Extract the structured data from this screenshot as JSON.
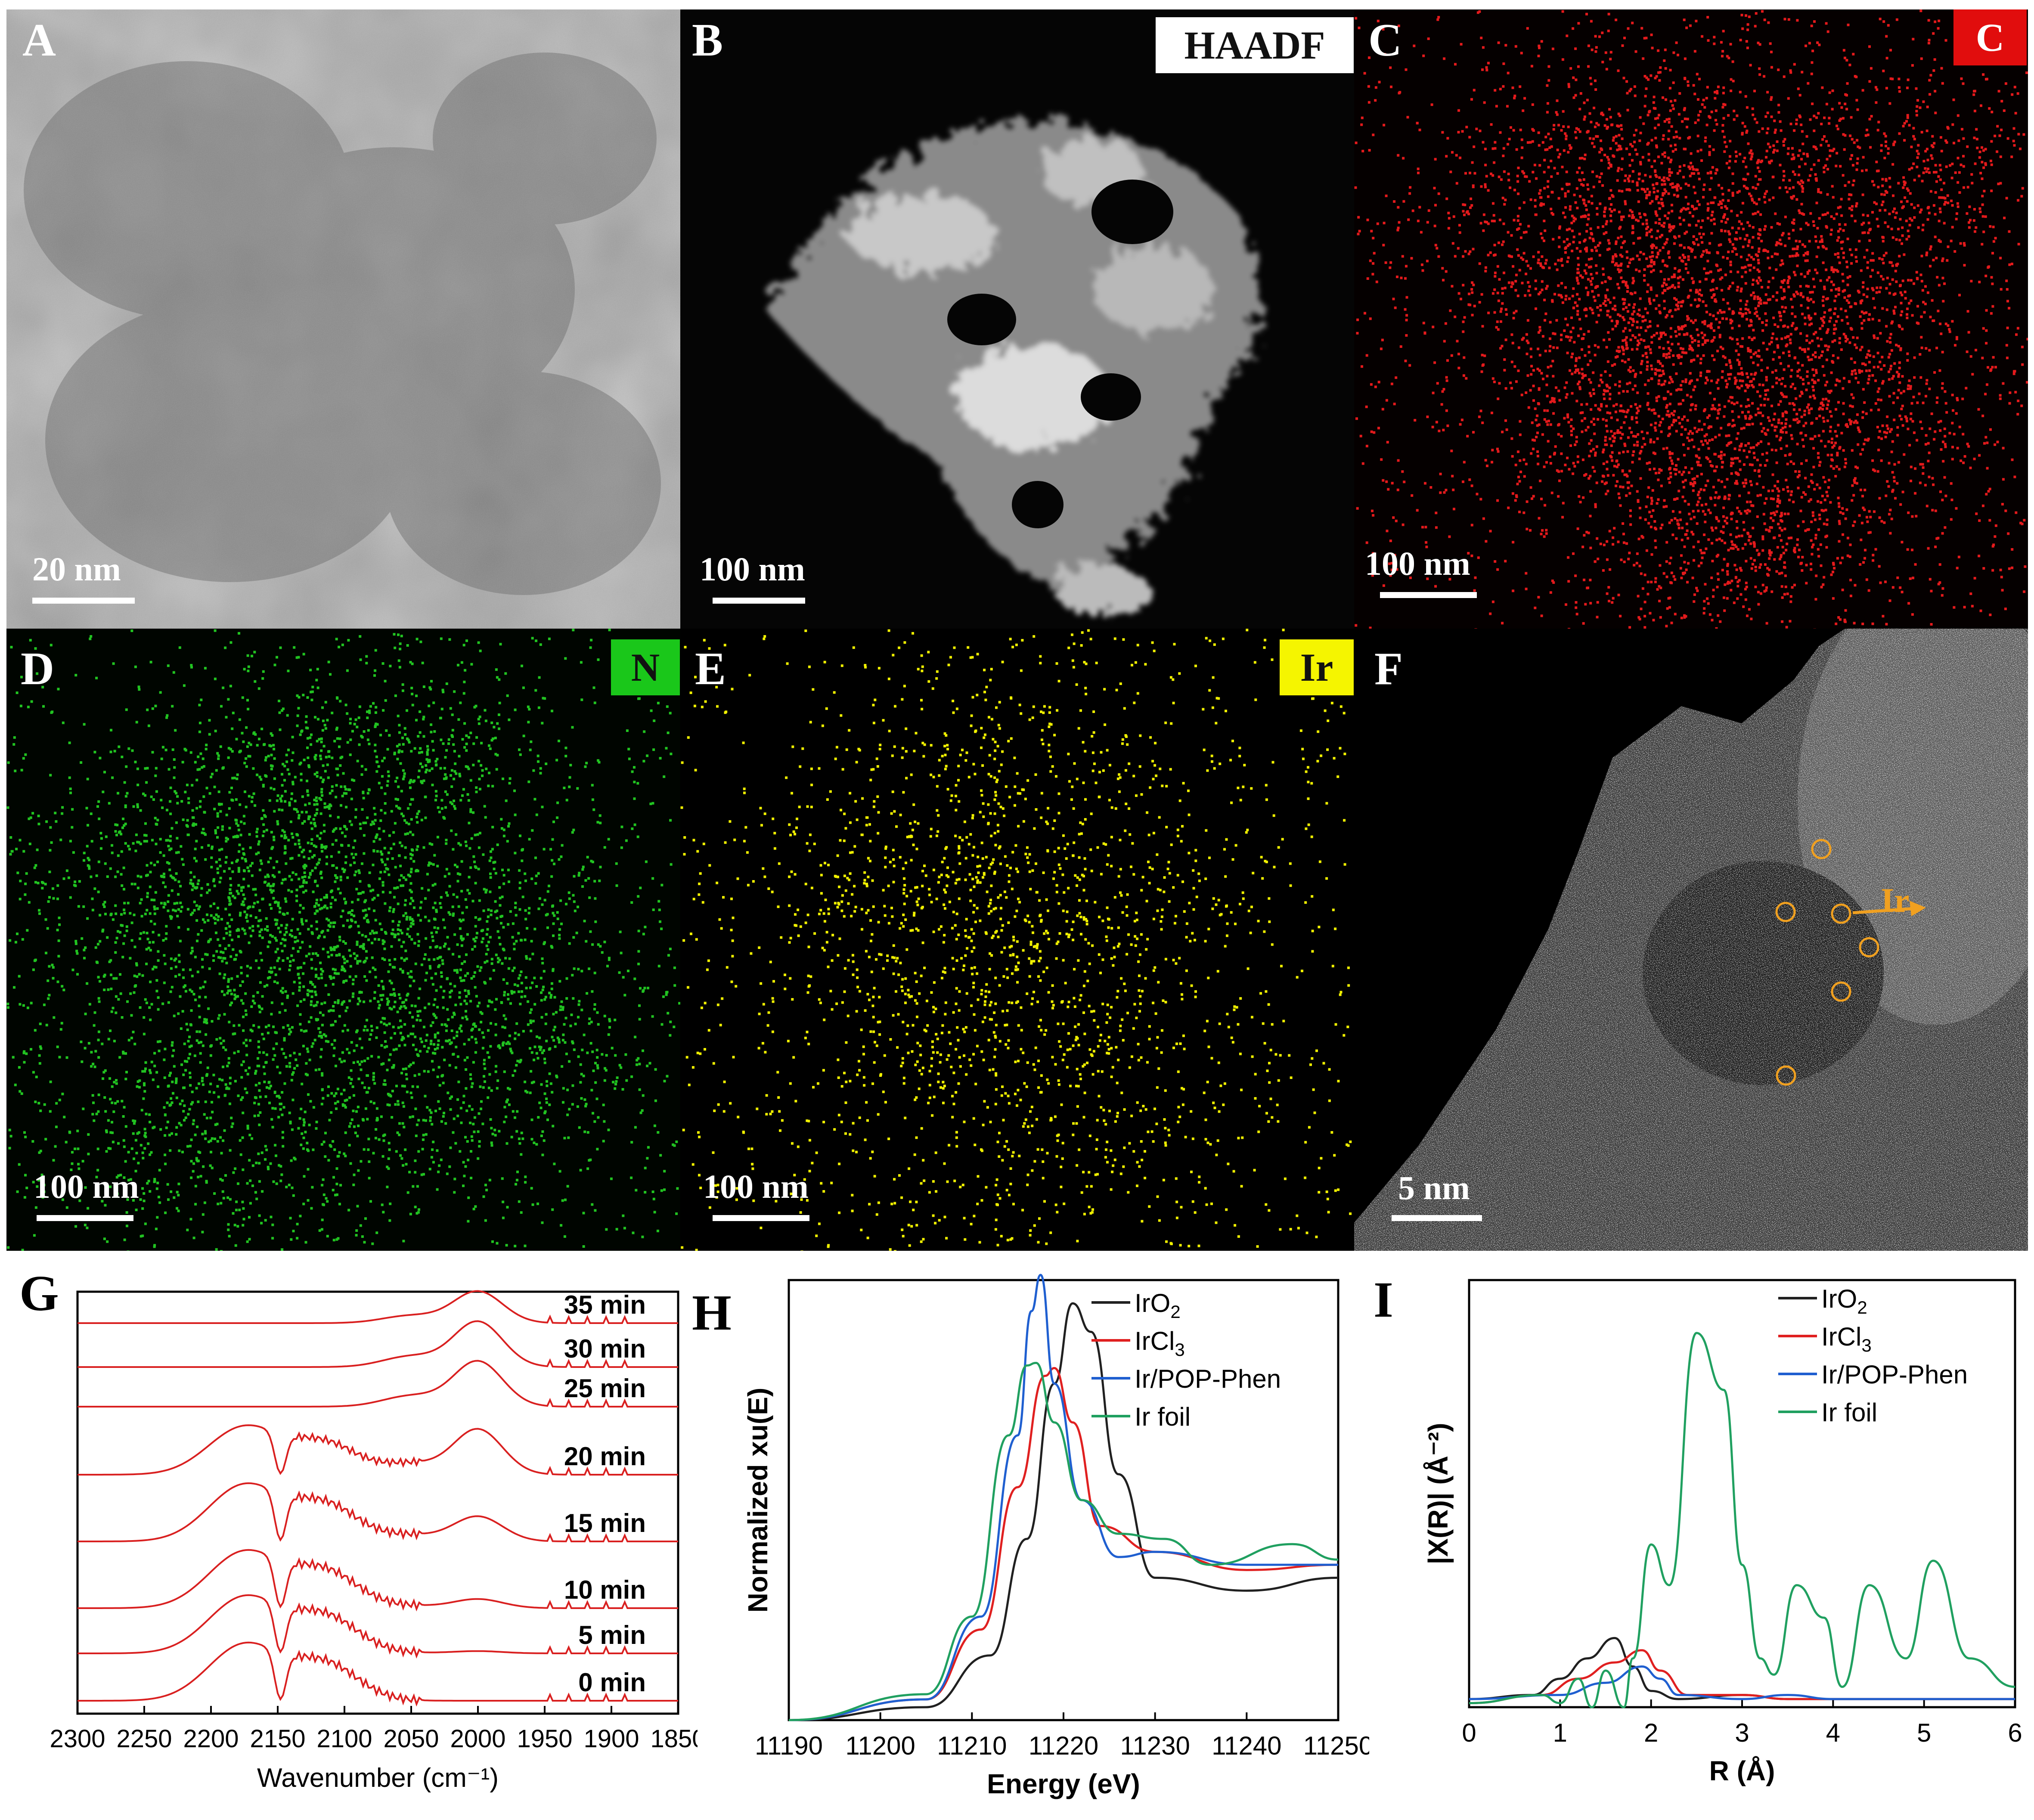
{
  "panels": {
    "A": {
      "letter": "A",
      "scale": "20 nm"
    },
    "B": {
      "letter": "B",
      "tag": "HAADF",
      "scale": "100 nm"
    },
    "C": {
      "letter": "C",
      "tag": "C",
      "scale": "100 nm"
    },
    "D": {
      "letter": "D",
      "tag": "N",
      "scale": "100 nm"
    },
    "E": {
      "letter": "E",
      "tag": "Ir",
      "scale": "100 nm"
    },
    "F": {
      "letter": "F",
      "annotation": "Ir",
      "scale": "5 nm"
    },
    "G": {
      "letter": "G"
    },
    "H": {
      "letter": "H"
    },
    "I": {
      "letter": "I"
    }
  },
  "colors": {
    "C_map": "#e41a1c",
    "N_map": "#21c321",
    "Ir_map": "#f0f000",
    "ir_circle": "#f0a020",
    "ftir": "#d92020",
    "IrO2": "#202020",
    "IrCl3": "#e02020",
    "IrPOP": "#1f5fd0",
    "Irfoil": "#20a060"
  },
  "chart_data": [
    {
      "id": "G",
      "type": "line",
      "xlabel": "Wavenumber (cm⁻¹)",
      "ylabel": "",
      "xlim": [
        2300,
        1850
      ],
      "xticks": [
        "2300",
        "2250",
        "2200",
        "2150",
        "2100",
        "2050",
        "2000",
        "1950",
        "1900",
        "1850"
      ],
      "series": [
        {
          "name": "0 min",
          "dip": 1.0,
          "co_band": 0.0
        },
        {
          "name": "5 min",
          "dip": 1.0,
          "co_band": 0.05
        },
        {
          "name": "10 min",
          "dip": 1.0,
          "co_band": 0.2
        },
        {
          "name": "15 min",
          "dip": 1.0,
          "co_band": 0.55
        },
        {
          "name": "20 min",
          "dip": 0.85,
          "co_band": 1.0
        },
        {
          "name": "25 min",
          "dip": 0.0,
          "co_band": 1.0
        },
        {
          "name": "30 min",
          "dip": 0.0,
          "co_band": 1.0
        },
        {
          "name": "35 min",
          "dip": 0.0,
          "co_band": 0.7
        }
      ]
    },
    {
      "id": "H",
      "type": "line",
      "xlabel": "Energy (eV)",
      "ylabel": "Normalized xu(E)",
      "xlim": [
        11190,
        11250
      ],
      "ylim": [
        0,
        1.7
      ],
      "xticks": [
        "11190",
        "11200",
        "11210",
        "11220",
        "11230",
        "11240",
        "11250"
      ],
      "series": [
        {
          "name": "IrO",
          "sub": "2",
          "color": "IrO2",
          "x": [
            11190,
            11205,
            11212,
            11216,
            11219,
            11221,
            11223,
            11226,
            11230,
            11240,
            11250
          ],
          "y": [
            0.0,
            0.05,
            0.25,
            0.7,
            1.3,
            1.61,
            1.5,
            0.95,
            0.55,
            0.5,
            0.55
          ]
        },
        {
          "name": "IrCl",
          "sub": "3",
          "color": "IrCl3",
          "x": [
            11190,
            11205,
            11211,
            11215,
            11218,
            11219,
            11221,
            11224,
            11230,
            11240,
            11250
          ],
          "y": [
            0.0,
            0.08,
            0.35,
            0.9,
            1.33,
            1.36,
            1.15,
            0.75,
            0.65,
            0.58,
            0.6
          ]
        },
        {
          "name": "Ir/POP-Phen",
          "color": "IrPOP",
          "x": [
            11190,
            11205,
            11211,
            11215,
            11216.5,
            11217.5,
            11219,
            11222,
            11226,
            11230,
            11240,
            11250
          ],
          "y": [
            0.0,
            0.08,
            0.4,
            1.1,
            1.58,
            1.72,
            1.3,
            0.85,
            0.63,
            0.65,
            0.6,
            0.6
          ]
        },
        {
          "name": "Ir foil",
          "color": "Irfoil",
          "x": [
            11190,
            11205,
            11210,
            11214,
            11216,
            11217,
            11219,
            11222,
            11226,
            11231,
            11236,
            11245,
            11250
          ],
          "y": [
            0.0,
            0.1,
            0.4,
            1.1,
            1.37,
            1.38,
            1.15,
            0.85,
            0.72,
            0.7,
            0.6,
            0.68,
            0.62
          ]
        }
      ]
    },
    {
      "id": "I",
      "type": "line",
      "xlabel": "R (Å)",
      "ylabel": "|X(R)| (Å⁻²)",
      "xlim": [
        0,
        6
      ],
      "ylim": [
        0,
        1.05
      ],
      "xticks": [
        "0",
        "1",
        "2",
        "3",
        "4",
        "5",
        "6"
      ],
      "series": [
        {
          "name": "IrO",
          "sub": "2",
          "color": "IrO2",
          "x": [
            0,
            0.7,
            1.0,
            1.3,
            1.6,
            1.8,
            2.0,
            2.3,
            3.0,
            3.5,
            4.0,
            5.0,
            6.0
          ],
          "y": [
            0.02,
            0.03,
            0.07,
            0.12,
            0.17,
            0.1,
            0.04,
            0.02,
            0.03,
            0.02,
            0.02,
            0.02,
            0.02
          ]
        },
        {
          "name": "IrCl",
          "sub": "3",
          "color": "IrCl3",
          "x": [
            0,
            0.8,
            1.2,
            1.6,
            1.9,
            2.1,
            2.4,
            3.0,
            3.5,
            4.0,
            5.0,
            6.0
          ],
          "y": [
            0.01,
            0.03,
            0.07,
            0.11,
            0.14,
            0.09,
            0.03,
            0.03,
            0.02,
            0.02,
            0.02,
            0.02
          ]
        },
        {
          "name": "Ir/POP-Phen",
          "color": "IrPOP",
          "x": [
            0,
            1.0,
            1.5,
            1.9,
            2.1,
            2.3,
            3.0,
            3.5,
            4.0,
            5.0,
            6.0
          ],
          "y": [
            0.02,
            0.03,
            0.06,
            0.1,
            0.07,
            0.03,
            0.02,
            0.03,
            0.02,
            0.02,
            0.02
          ]
        },
        {
          "name": "Ir foil",
          "color": "Irfoil",
          "x": [
            0,
            0.8,
            1.0,
            1.2,
            1.35,
            1.5,
            1.7,
            1.8,
            2.0,
            2.2,
            2.5,
            2.8,
            3.0,
            3.2,
            3.35,
            3.6,
            3.9,
            4.1,
            4.4,
            4.8,
            5.1,
            5.5,
            6.0
          ],
          "y": [
            0.01,
            0.03,
            0.01,
            0.07,
            0.0,
            0.09,
            0.0,
            0.12,
            0.4,
            0.3,
            0.92,
            0.78,
            0.35,
            0.12,
            0.08,
            0.3,
            0.22,
            0.05,
            0.3,
            0.12,
            0.36,
            0.12,
            0.05
          ]
        }
      ]
    }
  ]
}
